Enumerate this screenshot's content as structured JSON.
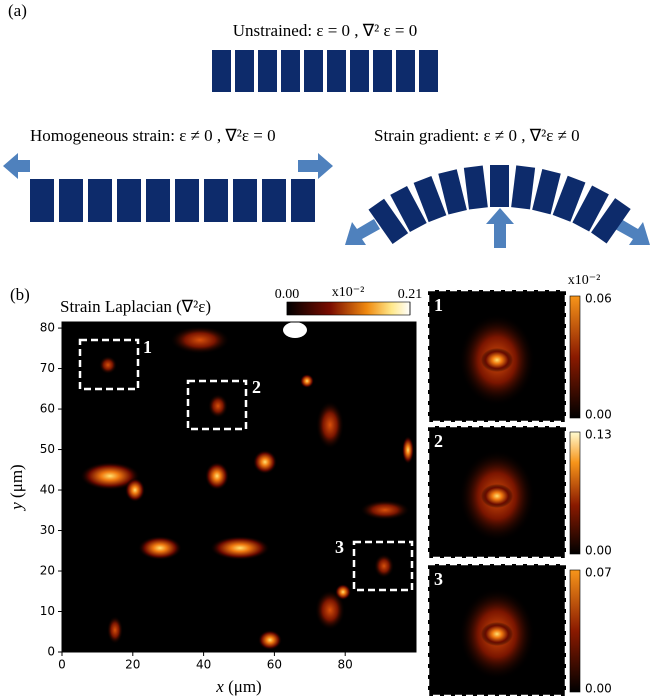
{
  "panel_a": {
    "label": "(a)",
    "unstrained": "Unstrained: ε = 0  , ∇² ε = 0",
    "homogeneous": "Homogeneous strain: ε ≠ 0  , ∇²ε = 0",
    "gradient": "Strain gradient: ε ≠ 0  , ∇²ε ≠ 0"
  },
  "panel_b": {
    "label": "(b)",
    "title": "Strain Laplacian (∇²ε)",
    "colorbar": {
      "multiplier": "x10⁻²",
      "ticks": [
        {
          "value": 0,
          "label": "0.00"
        },
        {
          "value": 0.21,
          "label": "0.21"
        }
      ]
    },
    "xlabel_var": "x",
    "xlabel_unit": "(μm)",
    "ylabel_var": "y",
    "ylabel_unit": "(μm)",
    "xlim": [
      0,
      100
    ],
    "ylim": [
      0,
      81.5
    ],
    "xticks": [
      0,
      20,
      40,
      60,
      80
    ],
    "yticks": [
      0,
      10,
      20,
      30,
      40,
      50,
      60,
      70,
      80
    ],
    "regions": [
      "1",
      "2",
      "3"
    ],
    "insets": [
      {
        "label": "1",
        "multiplier": "x10⁻²",
        "top": "0.06",
        "bottom": "0.00"
      },
      {
        "label": "2",
        "top": "0.13",
        "bottom": "0.00"
      },
      {
        "label": "3",
        "top": "0.07",
        "bottom": "0.00"
      }
    ]
  }
}
